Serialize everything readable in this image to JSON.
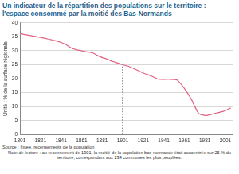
{
  "chart_data": {
    "type": "line",
    "title": [
      "Un indicateur de la répartition des populations sur le territoire :",
      "l'espace consommé par la moitié des Bas-Normands"
    ],
    "y_label": "Unité : % de la surface régionale",
    "x": [
      1801,
      1806,
      1821,
      1831,
      1836,
      1841,
      1846,
      1851,
      1856,
      1861,
      1866,
      1872,
      1876,
      1881,
      1886,
      1891,
      1896,
      1901,
      1906,
      1911,
      1921,
      1926,
      1931,
      1936,
      1946,
      1954,
      1962,
      1968,
      1975,
      1982,
      1990,
      1999,
      2006
    ],
    "values": [
      36.2,
      35.8,
      34.8,
      34.0,
      33.6,
      33.0,
      32.2,
      31.0,
      30.4,
      30.0,
      29.6,
      29.2,
      28.4,
      27.6,
      27.0,
      26.2,
      25.6,
      25.0,
      24.5,
      23.8,
      22.0,
      21.4,
      20.6,
      19.8,
      19.8,
      19.5,
      16.0,
      12.5,
      7.5,
      6.8,
      7.5,
      8.3,
      9.5
    ],
    "color": "#e0607e",
    "vline": {
      "x": 1901,
      "y": [
        0,
        25
      ]
    },
    "xlim": [
      1801,
      2008
    ],
    "xticks": [
      1801,
      1821,
      1841,
      1861,
      1881,
      1901,
      1921,
      1941,
      1961,
      1981,
      2001
    ],
    "ylim": [
      0,
      40
    ],
    "yticks": [
      0,
      5,
      10,
      15,
      20,
      25,
      30,
      35,
      40
    ],
    "grid": true,
    "source": "Source : Insee, recensements de la population",
    "note": "Note de lecture : au recensement de 1901, la moitié de la population bas-normande était concentrée sur 25 % du territoire, correspondant aux 234 communes les plus peuplées."
  }
}
